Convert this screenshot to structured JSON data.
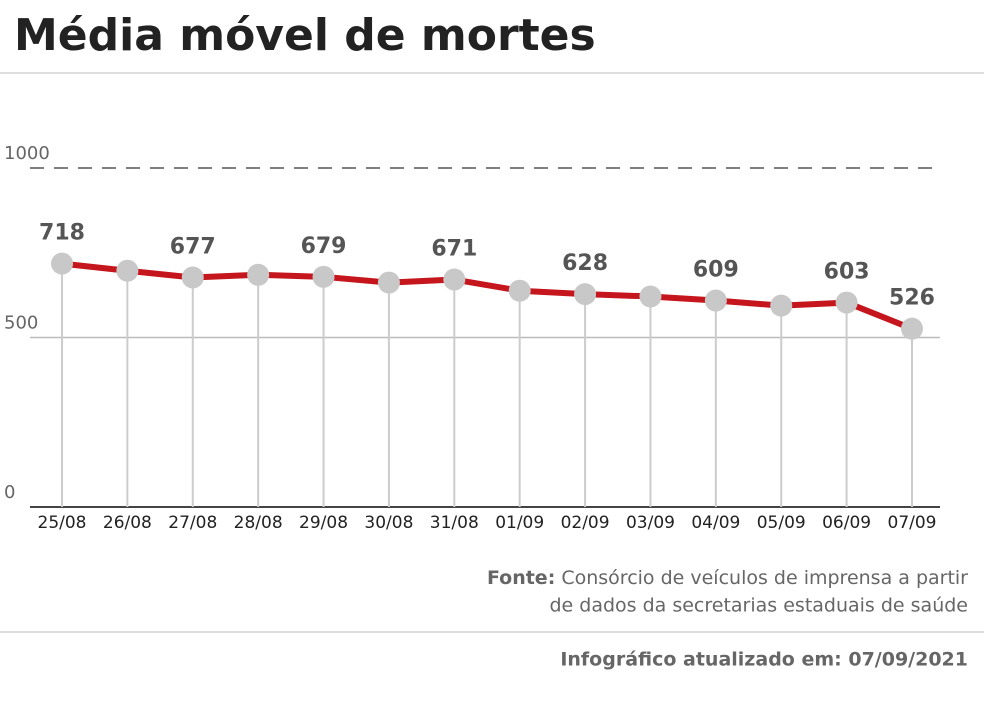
{
  "chart_data": {
    "type": "line",
    "title": "Média móvel de mortes",
    "categories": [
      "25/08",
      "26/08",
      "27/08",
      "28/08",
      "29/08",
      "30/08",
      "31/08",
      "01/09",
      "02/09",
      "03/09",
      "04/09",
      "05/09",
      "06/09",
      "07/09"
    ],
    "series": [
      {
        "color": "#c4161c",
        "values": [
          718,
          697,
          677,
          685,
          679,
          662,
          671,
          638,
          628,
          621,
          609,
          594,
          603,
          526
        ],
        "value_labels": [
          "718",
          null,
          "677",
          null,
          "679",
          null,
          "671",
          null,
          "628",
          null,
          "609",
          null,
          "603",
          "526"
        ]
      }
    ],
    "ylim": [
      0,
      1000
    ],
    "yticks": [
      0,
      500,
      1000
    ],
    "grid": true,
    "source_label": "Fonte:",
    "source_lines": [
      "Consórcio de veículos de imprensa a partir",
      "de dados da secretarias estaduais de saúde"
    ],
    "updated": "Infográfico atualizado em: 07/09/2021"
  }
}
